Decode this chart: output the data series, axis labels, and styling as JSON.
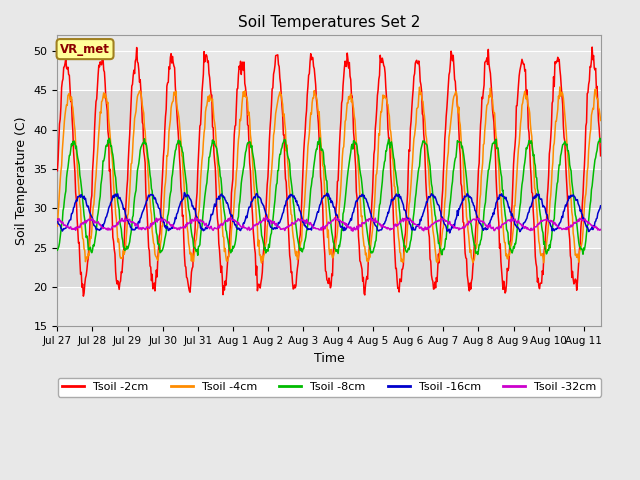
{
  "title": "Soil Temperatures Set 2",
  "xlabel": "Time",
  "ylabel": "Soil Temperature (C)",
  "ylim": [
    15,
    52
  ],
  "yticks": [
    15,
    20,
    25,
    30,
    35,
    40,
    45,
    50
  ],
  "annotation": "VR_met",
  "annotation_color": "#8B0000",
  "annotation_bg": "#FFFF99",
  "annotation_edge": "#A08020",
  "fig_bg": "#E8E8E8",
  "plot_bg": "#E8E8E8",
  "band_colors": [
    "#E0E0E0",
    "#CCCCCC"
  ],
  "line_colors": {
    "2cm": "#FF0000",
    "4cm": "#FF8C00",
    "8cm": "#00BB00",
    "16cm": "#0000CC",
    "32cm": "#CC00CC"
  },
  "legend_labels": [
    "Tsoil -2cm",
    "Tsoil -4cm",
    "Tsoil -8cm",
    "Tsoil -16cm",
    "Tsoil -32cm"
  ],
  "n_days": 15.5,
  "dt": 0.02,
  "series": {
    "2cm": {
      "base": 34.5,
      "amp": 14.5,
      "phase": 0.0,
      "noise": 0.6
    },
    "4cm": {
      "base": 34.0,
      "amp": 10.5,
      "phase": 0.18,
      "noise": 0.4
    },
    "8cm": {
      "base": 31.5,
      "amp": 7.0,
      "phase": 0.42,
      "noise": 0.25
    },
    "16cm": {
      "base": 29.5,
      "amp": 2.2,
      "phase": 0.85,
      "noise": 0.15
    },
    "32cm": {
      "base": 28.0,
      "amp": 0.6,
      "phase": 1.4,
      "noise": 0.12
    }
  },
  "tick_positions": [
    0,
    1,
    2,
    3,
    4,
    5,
    6,
    7,
    8,
    9,
    10,
    11,
    12,
    13,
    14,
    15
  ],
  "tick_labels": [
    "Jul 27",
    "Jul 28",
    "Jul 29",
    "Jul 30",
    "Jul 31",
    "Aug 1",
    "Aug 2",
    "Aug 3",
    "Aug 4",
    "Aug 5",
    "Aug 6",
    "Aug 7",
    "Aug 8",
    "Aug 9",
    "Aug 10",
    "Aug 11"
  ]
}
